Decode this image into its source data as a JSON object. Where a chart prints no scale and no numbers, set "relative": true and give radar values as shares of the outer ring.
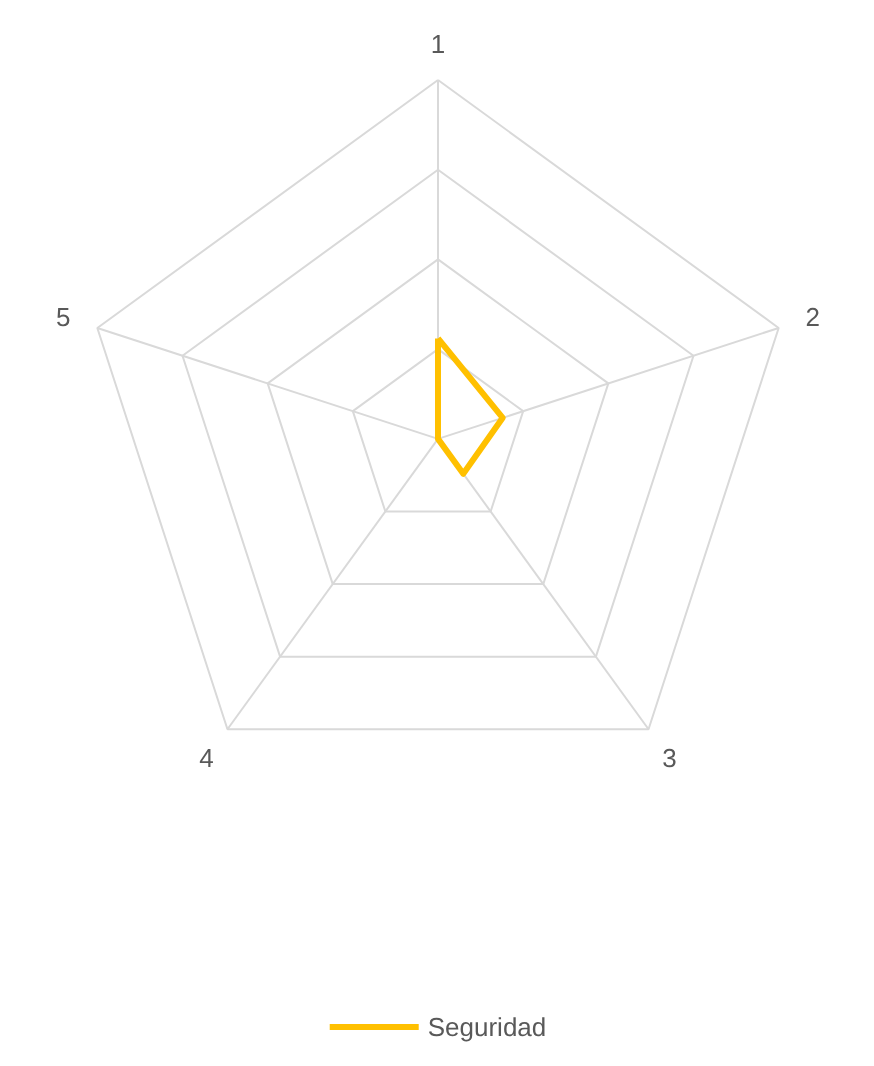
{
  "chart_data": {
    "type": "radar",
    "relative": true,
    "categories": [
      "1",
      "2",
      "3",
      "4",
      "5"
    ],
    "series": [
      {
        "name": "Seguridad",
        "color": "#ffc000",
        "values": [
          0.28,
          0.19,
          0.12,
          0,
          0
        ]
      }
    ],
    "grid": true,
    "legend": "bottom",
    "line_style": "solid",
    "marker": "none"
  }
}
